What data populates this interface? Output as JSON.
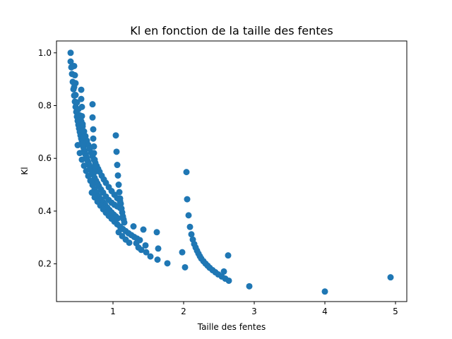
{
  "chart_data": {
    "type": "scatter",
    "title": "Kl en fonction de la taille des fentes",
    "xlabel": "Taille des fentes",
    "ylabel": "Kl",
    "xlim": [
      0.2,
      5.16
    ],
    "ylim": [
      0.057,
      1.045
    ],
    "xticks": [
      "1",
      "2",
      "3",
      "4",
      "5"
    ],
    "yticks": [
      "0.2",
      "0.4",
      "0.6",
      "0.8",
      "1.0"
    ],
    "grid": false,
    "marker_color": "#1f77b4",
    "series": [
      {
        "points": [
          [
            0.4,
            1.0
          ],
          [
            0.4,
            0.967
          ],
          [
            0.41,
            0.945
          ],
          [
            0.42,
            0.92
          ],
          [
            0.43,
            0.89
          ],
          [
            0.44,
            0.862
          ],
          [
            0.45,
            0.838
          ],
          [
            0.46,
            0.815
          ],
          [
            0.47,
            0.795
          ],
          [
            0.48,
            0.776
          ],
          [
            0.49,
            0.758
          ],
          [
            0.5,
            0.742
          ],
          [
            0.51,
            0.727
          ],
          [
            0.52,
            0.713
          ],
          [
            0.53,
            0.7
          ],
          [
            0.54,
            0.687
          ],
          [
            0.55,
            0.675
          ],
          [
            0.56,
            0.664
          ],
          [
            0.57,
            0.653
          ],
          [
            0.58,
            0.643
          ],
          [
            0.59,
            0.633
          ],
          [
            0.6,
            0.624
          ],
          [
            0.61,
            0.615
          ],
          [
            0.62,
            0.607
          ],
          [
            0.63,
            0.599
          ],
          [
            0.64,
            0.591
          ],
          [
            0.65,
            0.584
          ],
          [
            0.66,
            0.577
          ],
          [
            0.67,
            0.57
          ],
          [
            0.68,
            0.563
          ],
          [
            0.7,
            0.55
          ],
          [
            0.72,
            0.538
          ],
          [
            0.74,
            0.526
          ],
          [
            0.76,
            0.515
          ],
          [
            0.78,
            0.505
          ],
          [
            0.8,
            0.495
          ],
          [
            0.83,
            0.482
          ],
          [
            0.86,
            0.47
          ],
          [
            0.9,
            0.455
          ],
          [
            0.94,
            0.442
          ],
          [
            0.98,
            0.432
          ],
          [
            1.02,
            0.424
          ],
          [
            1.06,
            0.418
          ],
          [
            1.1,
            0.412
          ],
          [
            0.45,
            0.87
          ],
          [
            0.47,
            0.84
          ],
          [
            0.49,
            0.812
          ],
          [
            0.51,
            0.786
          ],
          [
            0.53,
            0.763
          ],
          [
            0.55,
            0.741
          ],
          [
            0.57,
            0.721
          ],
          [
            0.59,
            0.702
          ],
          [
            0.61,
            0.684
          ],
          [
            0.63,
            0.667
          ],
          [
            0.65,
            0.651
          ],
          [
            0.67,
            0.636
          ],
          [
            0.69,
            0.622
          ],
          [
            0.71,
            0.608
          ],
          [
            0.73,
            0.595
          ],
          [
            0.75,
            0.583
          ],
          [
            0.77,
            0.571
          ],
          [
            0.79,
            0.56
          ],
          [
            0.81,
            0.549
          ],
          [
            0.84,
            0.534
          ],
          [
            0.87,
            0.52
          ],
          [
            0.9,
            0.507
          ],
          [
            0.94,
            0.491
          ],
          [
            0.98,
            0.476
          ],
          [
            1.02,
            0.462
          ],
          [
            1.06,
            0.449
          ],
          [
            1.1,
            0.437
          ],
          [
            0.5,
            0.65
          ],
          [
            0.53,
            0.62
          ],
          [
            0.56,
            0.595
          ],
          [
            0.59,
            0.572
          ],
          [
            0.62,
            0.552
          ],
          [
            0.65,
            0.533
          ],
          [
            0.68,
            0.515
          ],
          [
            0.71,
            0.499
          ],
          [
            0.74,
            0.484
          ],
          [
            0.77,
            0.47
          ],
          [
            0.8,
            0.457
          ],
          [
            0.83,
            0.445
          ],
          [
            0.86,
            0.434
          ],
          [
            0.89,
            0.423
          ],
          [
            0.92,
            0.413
          ],
          [
            0.95,
            0.404
          ],
          [
            0.98,
            0.395
          ],
          [
            1.01,
            0.387
          ],
          [
            1.04,
            0.38
          ],
          [
            1.07,
            0.373
          ],
          [
            0.7,
            0.47
          ],
          [
            0.74,
            0.452
          ],
          [
            0.78,
            0.436
          ],
          [
            0.82,
            0.421
          ],
          [
            0.86,
            0.407
          ],
          [
            0.9,
            0.394
          ],
          [
            0.94,
            0.382
          ],
          [
            0.98,
            0.371
          ],
          [
            1.02,
            0.36
          ],
          [
            1.06,
            0.35
          ],
          [
            1.1,
            0.341
          ],
          [
            1.14,
            0.332
          ],
          [
            1.18,
            0.324
          ],
          [
            1.22,
            0.316
          ],
          [
            1.26,
            0.309
          ],
          [
            1.3,
            0.302
          ],
          [
            1.34,
            0.296
          ],
          [
            1.38,
            0.29
          ],
          [
            0.45,
            0.95
          ],
          [
            0.46,
            0.915
          ],
          [
            0.47,
            0.885
          ],
          [
            0.55,
            0.86
          ],
          [
            0.55,
            0.825
          ],
          [
            0.56,
            0.795
          ],
          [
            0.56,
            0.76
          ],
          [
            0.57,
            0.73
          ],
          [
            0.57,
            0.705
          ],
          [
            0.58,
            0.68
          ],
          [
            0.58,
            0.655
          ],
          [
            0.71,
            0.805
          ],
          [
            0.71,
            0.755
          ],
          [
            0.72,
            0.71
          ],
          [
            0.72,
            0.675
          ],
          [
            0.73,
            0.645
          ],
          [
            0.73,
            0.62
          ],
          [
            0.74,
            0.595
          ],
          [
            0.74,
            0.57
          ],
          [
            0.75,
            0.55
          ],
          [
            1.04,
            0.687
          ],
          [
            1.05,
            0.625
          ],
          [
            1.06,
            0.575
          ],
          [
            1.07,
            0.535
          ],
          [
            1.08,
            0.5
          ],
          [
            1.09,
            0.472
          ],
          [
            1.1,
            0.448
          ],
          [
            1.11,
            0.428
          ],
          [
            1.12,
            0.41
          ],
          [
            1.13,
            0.395
          ],
          [
            1.14,
            0.38
          ],
          [
            1.15,
            0.368
          ],
          [
            1.16,
            0.357
          ],
          [
            1.08,
            0.32
          ],
          [
            1.13,
            0.305
          ],
          [
            1.18,
            0.292
          ],
          [
            1.23,
            0.28
          ],
          [
            1.29,
            0.342
          ],
          [
            1.33,
            0.278
          ],
          [
            1.36,
            0.262
          ],
          [
            1.4,
            0.253
          ],
          [
            1.43,
            0.33
          ],
          [
            1.46,
            0.27
          ],
          [
            1.47,
            0.244
          ],
          [
            1.53,
            0.228
          ],
          [
            1.62,
            0.32
          ],
          [
            1.64,
            0.258
          ],
          [
            1.63,
            0.216
          ],
          [
            1.77,
            0.202
          ],
          [
            2.04,
            0.548
          ],
          [
            2.05,
            0.445
          ],
          [
            2.07,
            0.384
          ],
          [
            2.09,
            0.34
          ],
          [
            2.11,
            0.312
          ],
          [
            2.13,
            0.292
          ],
          [
            2.15,
            0.275
          ],
          [
            2.17,
            0.262
          ],
          [
            2.19,
            0.25
          ],
          [
            2.21,
            0.239
          ],
          [
            2.23,
            0.229
          ],
          [
            2.25,
            0.22
          ],
          [
            2.28,
            0.21
          ],
          [
            2.31,
            0.201
          ],
          [
            2.34,
            0.193
          ],
          [
            2.37,
            0.185
          ],
          [
            2.41,
            0.176
          ],
          [
            2.45,
            0.168
          ],
          [
            2.49,
            0.16
          ],
          [
            2.54,
            0.152
          ],
          [
            2.59,
            0.144
          ],
          [
            1.98,
            0.244
          ],
          [
            2.02,
            0.187
          ],
          [
            2.57,
            0.171
          ],
          [
            2.63,
            0.232
          ],
          [
            2.64,
            0.136
          ],
          [
            2.93,
            0.115
          ],
          [
            4.0,
            0.095
          ],
          [
            4.93,
            0.149
          ]
        ]
      }
    ]
  }
}
